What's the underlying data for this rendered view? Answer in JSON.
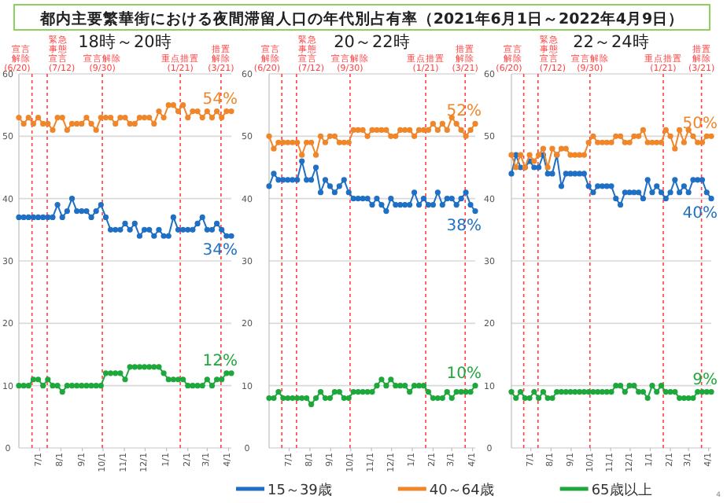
{
  "chart_data": [
    {
      "type": "line",
      "title": "都内主要繁華街における夜間滞留人口の年代別占有率（2021年6月1日～2022年4月9日）",
      "subtitle": "18時～20時",
      "x": [
        "2021-06-01",
        "2021-06-08",
        "2021-06-15",
        "2021-06-22",
        "2021-06-29",
        "2021-07-06",
        "2021-07-13",
        "2021-07-20",
        "2021-07-27",
        "2021-08-03",
        "2021-08-10",
        "2021-08-17",
        "2021-08-24",
        "2021-08-31",
        "2021-09-07",
        "2021-09-14",
        "2021-09-21",
        "2021-09-28",
        "2021-10-05",
        "2021-10-12",
        "2021-10-19",
        "2021-10-26",
        "2021-11-02",
        "2021-11-09",
        "2021-11-16",
        "2021-11-23",
        "2021-11-30",
        "2021-12-07",
        "2021-12-14",
        "2021-12-21",
        "2021-12-28",
        "2022-01-04",
        "2022-01-11",
        "2022-01-18",
        "2022-01-25",
        "2022-02-01",
        "2022-02-08",
        "2022-02-15",
        "2022-02-22",
        "2022-03-01",
        "2022-03-08",
        "2022-03-15",
        "2022-03-22",
        "2022-03-29",
        "2022-04-05"
      ],
      "xlim": [
        "2021-06-01",
        "2022-04-05"
      ],
      "xticks": [
        {
          "value": "2021-07-01",
          "label": "7/1"
        },
        {
          "value": "2021-08-01",
          "label": "8/1"
        },
        {
          "value": "2021-09-01",
          "label": "9/1"
        },
        {
          "value": "2021-10-01",
          "label": "10/1"
        },
        {
          "value": "2021-11-01",
          "label": "11/1"
        },
        {
          "value": "2021-12-01",
          "label": "12/1"
        },
        {
          "value": "2022-01-01",
          "label": "1/1"
        },
        {
          "value": "2022-02-01",
          "label": "2/1"
        },
        {
          "value": "2022-03-01",
          "label": "3/1"
        },
        {
          "value": "2022-04-01",
          "label": "4/1"
        }
      ],
      "ylim": [
        0,
        60
      ],
      "yticks": [
        0,
        10,
        20,
        30,
        40,
        50,
        60
      ],
      "grid": "y",
      "marker": "circle",
      "legend": "bottom",
      "series": [
        {
          "name": "15～39歳",
          "color": "#1f6fc4",
          "values": [
            37,
            37,
            37,
            37,
            37,
            37,
            37,
            37,
            39,
            37,
            38,
            40,
            38,
            38,
            38,
            37,
            38,
            39,
            37,
            35,
            35,
            35,
            36,
            35,
            36,
            34,
            35,
            35,
            34,
            35,
            34,
            34,
            37,
            35,
            35,
            35,
            35,
            36,
            37,
            35,
            35,
            36,
            35,
            34,
            34
          ],
          "value_labels": [
            null,
            null,
            null,
            null,
            null,
            null,
            null,
            null,
            null,
            null,
            null,
            null,
            null,
            null,
            null,
            null,
            null,
            null,
            null,
            null,
            null,
            null,
            null,
            null,
            null,
            null,
            null,
            null,
            null,
            null,
            null,
            null,
            null,
            null,
            null,
            null,
            null,
            null,
            null,
            null,
            null,
            null,
            null,
            null,
            "34%"
          ]
        },
        {
          "name": "40～64歳",
          "color": "#f0862a",
          "values": [
            53,
            52,
            53,
            52,
            53,
            52,
            52,
            51,
            53,
            53,
            51,
            52,
            52,
            52,
            53,
            52,
            51,
            53,
            53,
            53,
            52,
            53,
            53,
            52,
            52,
            53,
            53,
            53,
            52,
            54,
            53,
            55,
            55,
            54,
            55,
            53,
            54,
            54,
            53,
            54,
            53,
            54,
            53,
            54,
            54
          ],
          "value_labels": [
            null,
            null,
            null,
            null,
            null,
            null,
            null,
            null,
            null,
            null,
            null,
            null,
            null,
            null,
            null,
            null,
            null,
            null,
            null,
            null,
            null,
            null,
            null,
            null,
            null,
            null,
            null,
            null,
            null,
            null,
            null,
            null,
            null,
            null,
            null,
            null,
            null,
            null,
            null,
            null,
            null,
            null,
            null,
            null,
            "54%"
          ]
        },
        {
          "name": "65歳以上",
          "color": "#1ea83c",
          "values": [
            10,
            10,
            10,
            11,
            11,
            10,
            11,
            10,
            10,
            9,
            10,
            10,
            10,
            10,
            10,
            10,
            10,
            10,
            12,
            12,
            12,
            12,
            11,
            13,
            13,
            13,
            13,
            13,
            13,
            13,
            12,
            11,
            11,
            11,
            11,
            10,
            10,
            10,
            10,
            11,
            10,
            11,
            11,
            12,
            12
          ],
          "value_labels": [
            null,
            null,
            null,
            null,
            null,
            null,
            null,
            null,
            null,
            null,
            null,
            null,
            null,
            null,
            null,
            null,
            null,
            null,
            null,
            null,
            null,
            null,
            null,
            null,
            null,
            null,
            null,
            null,
            null,
            null,
            null,
            null,
            null,
            null,
            null,
            null,
            null,
            null,
            null,
            null,
            null,
            null,
            null,
            null,
            "12%"
          ]
        }
      ],
      "ref_lines": [
        {
          "axis": "x",
          "value": "2021-06-20",
          "label": "宣言解除(6/20)",
          "color": "#ff4040",
          "line_style": "dashed"
        },
        {
          "axis": "x",
          "value": "2021-07-12",
          "label": "緊急事態宣言(7/12)",
          "color": "#ff4040",
          "line_style": "dashed"
        },
        {
          "axis": "x",
          "value": "2021-09-30",
          "label": "宣言解除(9/30)",
          "color": "#ff4040",
          "line_style": "dashed"
        },
        {
          "axis": "x",
          "value": "2022-01-21",
          "label": "重点措置(1/21)",
          "color": "#ff4040",
          "line_style": "dashed"
        },
        {
          "axis": "x",
          "value": "2022-03-21",
          "label": "措置解除(3/21)",
          "color": "#ff4040",
          "line_style": "dashed"
        }
      ]
    },
    {
      "type": "line",
      "subtitle": "20～22時",
      "x": [
        "2021-06-01",
        "2021-06-08",
        "2021-06-15",
        "2021-06-22",
        "2021-06-29",
        "2021-07-06",
        "2021-07-13",
        "2021-07-20",
        "2021-07-27",
        "2021-08-03",
        "2021-08-10",
        "2021-08-17",
        "2021-08-24",
        "2021-08-31",
        "2021-09-07",
        "2021-09-14",
        "2021-09-21",
        "2021-09-28",
        "2021-10-05",
        "2021-10-12",
        "2021-10-19",
        "2021-10-26",
        "2021-11-02",
        "2021-11-09",
        "2021-11-16",
        "2021-11-23",
        "2021-11-30",
        "2021-12-07",
        "2021-12-14",
        "2021-12-21",
        "2021-12-28",
        "2022-01-04",
        "2022-01-11",
        "2022-01-18",
        "2022-01-25",
        "2022-02-01",
        "2022-02-08",
        "2022-02-15",
        "2022-02-22",
        "2022-03-01",
        "2022-03-08",
        "2022-03-15",
        "2022-03-22",
        "2022-03-29",
        "2022-04-05"
      ],
      "xlim": [
        "2021-06-01",
        "2022-04-05"
      ],
      "xticks": [
        {
          "value": "2021-07-01",
          "label": "7/1"
        },
        {
          "value": "2021-08-01",
          "label": "8/1"
        },
        {
          "value": "2021-09-01",
          "label": "9/1"
        },
        {
          "value": "2021-10-01",
          "label": "10/1"
        },
        {
          "value": "2021-11-01",
          "label": "11/1"
        },
        {
          "value": "2021-12-01",
          "label": "12/1"
        },
        {
          "value": "2022-01-01",
          "label": "1/1"
        },
        {
          "value": "2022-02-01",
          "label": "2/1"
        },
        {
          "value": "2022-03-01",
          "label": "3/1"
        },
        {
          "value": "2022-04-01",
          "label": "4/1"
        }
      ],
      "ylim": [
        0,
        60
      ],
      "yticks": [
        0,
        10,
        20,
        30,
        40,
        50,
        60
      ],
      "grid": "y",
      "marker": "circle",
      "series": [
        {
          "color": "#1f6fc4",
          "values": [
            42,
            44,
            43,
            43,
            43,
            43,
            43,
            46,
            43,
            43,
            45,
            41,
            43,
            42,
            41,
            42,
            43,
            41,
            40,
            40,
            40,
            40,
            39,
            40,
            39,
            38,
            40,
            39,
            39,
            39,
            39,
            41,
            39,
            40,
            39,
            39,
            41,
            39,
            40,
            40,
            39,
            40,
            41,
            39,
            38
          ],
          "value_labels": [
            null,
            null,
            null,
            null,
            null,
            null,
            null,
            null,
            null,
            null,
            null,
            null,
            null,
            null,
            null,
            null,
            null,
            null,
            null,
            null,
            null,
            null,
            null,
            null,
            null,
            null,
            null,
            null,
            null,
            null,
            null,
            null,
            null,
            null,
            null,
            null,
            null,
            null,
            null,
            null,
            null,
            null,
            null,
            null,
            "38%"
          ]
        },
        {
          "color": "#f0862a",
          "values": [
            50,
            48,
            49,
            49,
            49,
            49,
            49,
            47,
            49,
            49,
            47,
            50,
            49,
            50,
            50,
            49,
            49,
            49,
            51,
            51,
            51,
            50,
            51,
            51,
            51,
            51,
            50,
            50,
            51,
            51,
            51,
            50,
            51,
            51,
            51,
            52,
            51,
            52,
            51,
            53,
            52,
            51,
            50,
            51,
            52
          ],
          "value_labels": [
            null,
            null,
            null,
            null,
            null,
            null,
            null,
            null,
            null,
            null,
            null,
            null,
            null,
            null,
            null,
            null,
            null,
            null,
            null,
            null,
            null,
            null,
            null,
            null,
            null,
            null,
            null,
            null,
            null,
            null,
            null,
            null,
            null,
            null,
            null,
            null,
            null,
            null,
            null,
            null,
            null,
            null,
            null,
            null,
            "52%"
          ]
        },
        {
          "color": "#1ea83c",
          "values": [
            8,
            8,
            9,
            8,
            8,
            8,
            8,
            8,
            8,
            7,
            8,
            9,
            8,
            8,
            9,
            9,
            8,
            8,
            9,
            9,
            9,
            9,
            9,
            10,
            11,
            10,
            11,
            10,
            10,
            10,
            9,
            10,
            10,
            10,
            9,
            8,
            8,
            8,
            9,
            8,
            9,
            9,
            9,
            9,
            10
          ],
          "value_labels": [
            null,
            null,
            null,
            null,
            null,
            null,
            null,
            null,
            null,
            null,
            null,
            null,
            null,
            null,
            null,
            null,
            null,
            null,
            null,
            null,
            null,
            null,
            null,
            null,
            null,
            null,
            null,
            null,
            null,
            null,
            null,
            null,
            null,
            null,
            null,
            null,
            null,
            null,
            null,
            null,
            null,
            null,
            null,
            null,
            "10%"
          ]
        }
      ],
      "ref_lines": [
        {
          "axis": "x",
          "value": "2021-06-20",
          "label": "宣言解除(6/20)",
          "color": "#ff4040",
          "line_style": "dashed"
        },
        {
          "axis": "x",
          "value": "2021-07-12",
          "label": "緊急事態宣言(7/12)",
          "color": "#ff4040",
          "line_style": "dashed"
        },
        {
          "axis": "x",
          "value": "2021-09-30",
          "label": "宣言解除(9/30)",
          "color": "#ff4040",
          "line_style": "dashed"
        },
        {
          "axis": "x",
          "value": "2022-01-21",
          "label": "重点措置(1/21)",
          "color": "#ff4040",
          "line_style": "dashed"
        },
        {
          "axis": "x",
          "value": "2022-03-21",
          "label": "措置解除(3/21)",
          "color": "#ff4040",
          "line_style": "dashed"
        }
      ]
    },
    {
      "type": "line",
      "subtitle": "22～24時",
      "x": [
        "2021-06-01",
        "2021-06-08",
        "2021-06-15",
        "2021-06-22",
        "2021-06-29",
        "2021-07-06",
        "2021-07-13",
        "2021-07-20",
        "2021-07-27",
        "2021-08-03",
        "2021-08-10",
        "2021-08-17",
        "2021-08-24",
        "2021-08-31",
        "2021-09-07",
        "2021-09-14",
        "2021-09-21",
        "2021-09-28",
        "2021-10-05",
        "2021-10-12",
        "2021-10-19",
        "2021-10-26",
        "2021-11-02",
        "2021-11-09",
        "2021-11-16",
        "2021-11-23",
        "2021-11-30",
        "2021-12-07",
        "2021-12-14",
        "2021-12-21",
        "2021-12-28",
        "2022-01-04",
        "2022-01-11",
        "2022-01-18",
        "2022-01-25",
        "2022-02-01",
        "2022-02-08",
        "2022-02-15",
        "2022-02-22",
        "2022-03-01",
        "2022-03-08",
        "2022-03-15",
        "2022-03-22",
        "2022-03-29",
        "2022-04-05"
      ],
      "xlim": [
        "2021-06-01",
        "2022-04-05"
      ],
      "xticks": [
        {
          "value": "2021-07-01",
          "label": "7/1"
        },
        {
          "value": "2021-08-01",
          "label": "8/1"
        },
        {
          "value": "2021-09-01",
          "label": "9/1"
        },
        {
          "value": "2021-10-01",
          "label": "10/1"
        },
        {
          "value": "2021-11-01",
          "label": "11/1"
        },
        {
          "value": "2021-12-01",
          "label": "12/1"
        },
        {
          "value": "2022-01-01",
          "label": "1/1"
        },
        {
          "value": "2022-02-01",
          "label": "2/1"
        },
        {
          "value": "2022-03-01",
          "label": "3/1"
        },
        {
          "value": "2022-04-01",
          "label": "4/1"
        }
      ],
      "ylim": [
        0,
        60
      ],
      "yticks": [
        0,
        10,
        20,
        30,
        40,
        50,
        60
      ],
      "grid": "y",
      "marker": "circle",
      "annotations": [
        "4"
      ],
      "series": [
        {
          "color": "#1f6fc4",
          "values": [
            44,
            47,
            45,
            45,
            46,
            45,
            45,
            47,
            44,
            44,
            47,
            42,
            44,
            44,
            44,
            44,
            44,
            42,
            41,
            42,
            42,
            42,
            42,
            40,
            39,
            41,
            41,
            41,
            41,
            40,
            43,
            41,
            42,
            41,
            40,
            41,
            43,
            41,
            42,
            41,
            43,
            43,
            43,
            41,
            40
          ],
          "value_labels": [
            null,
            null,
            null,
            null,
            null,
            null,
            null,
            null,
            null,
            null,
            null,
            null,
            null,
            null,
            null,
            null,
            null,
            null,
            null,
            null,
            null,
            null,
            null,
            null,
            null,
            null,
            null,
            null,
            null,
            null,
            null,
            null,
            null,
            null,
            null,
            null,
            null,
            null,
            null,
            null,
            null,
            null,
            null,
            null,
            "40%"
          ]
        },
        {
          "color": "#f0862a",
          "values": [
            47,
            45,
            47,
            45,
            47,
            46,
            47,
            48,
            45,
            48,
            47,
            48,
            48,
            47,
            47,
            47,
            47,
            49,
            50,
            49,
            49,
            49,
            49,
            50,
            50,
            49,
            49,
            50,
            50,
            51,
            49,
            49,
            49,
            49,
            51,
            50,
            48,
            51,
            49,
            51,
            50,
            49,
            49,
            50,
            50
          ],
          "value_labels": [
            null,
            null,
            null,
            null,
            null,
            null,
            null,
            null,
            null,
            null,
            null,
            null,
            null,
            null,
            null,
            null,
            null,
            null,
            null,
            null,
            null,
            null,
            null,
            null,
            null,
            null,
            null,
            null,
            null,
            null,
            null,
            null,
            null,
            null,
            null,
            null,
            null,
            null,
            null,
            null,
            null,
            null,
            null,
            null,
            "50%"
          ]
        },
        {
          "color": "#1ea83c",
          "values": [
            9,
            8,
            9,
            8,
            8,
            9,
            8,
            9,
            8,
            8,
            9,
            9,
            9,
            9,
            9,
            9,
            9,
            9,
            9,
            9,
            9,
            9,
            9,
            10,
            10,
            9,
            10,
            10,
            9,
            9,
            8,
            10,
            9,
            10,
            9,
            9,
            9,
            8,
            8,
            8,
            8,
            9,
            9,
            9,
            9
          ],
          "value_labels": [
            null,
            null,
            null,
            null,
            null,
            null,
            null,
            null,
            null,
            null,
            null,
            null,
            null,
            null,
            null,
            null,
            null,
            null,
            null,
            null,
            null,
            null,
            null,
            null,
            null,
            null,
            null,
            null,
            null,
            null,
            null,
            null,
            null,
            null,
            null,
            null,
            null,
            null,
            null,
            null,
            null,
            null,
            null,
            null,
            "9%"
          ]
        }
      ],
      "ref_lines": [
        {
          "axis": "x",
          "value": "2021-06-20",
          "label": "宣言解除(6/20)",
          "color": "#ff4040",
          "line_style": "dashed"
        },
        {
          "axis": "x",
          "value": "2021-07-12",
          "label": "緊急事態宣言(7/12)",
          "color": "#ff4040",
          "line_style": "dashed"
        },
        {
          "axis": "x",
          "value": "2021-09-30",
          "label": "宣言解除(9/30)",
          "color": "#ff4040",
          "line_style": "dashed"
        },
        {
          "axis": "x",
          "value": "2022-01-21",
          "label": "重点措置(1/21)",
          "color": "#ff4040",
          "line_style": "dashed"
        },
        {
          "axis": "x",
          "value": "2022-03-21",
          "label": "措置解除(3/21)",
          "color": "#ff4040",
          "line_style": "dashed"
        }
      ]
    }
  ]
}
